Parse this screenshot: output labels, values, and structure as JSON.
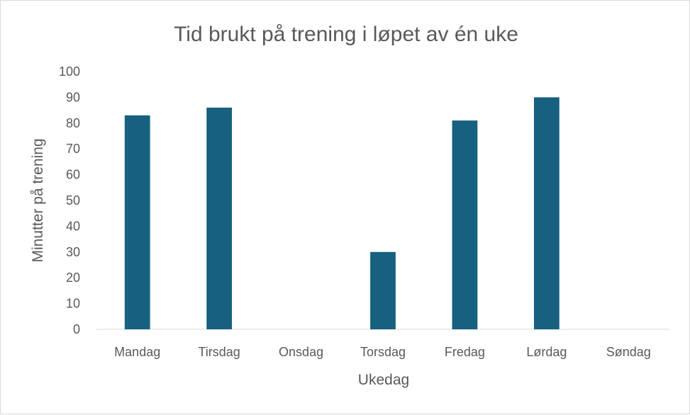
{
  "chart_data": {
    "type": "bar",
    "title": "Tid brukt på trening i løpet av én uke",
    "xlabel": "Ukedag",
    "ylabel": "Minutter på trening",
    "categories": [
      "Mandag",
      "Tirsdag",
      "Onsdag",
      "Torsdag",
      "Fredag",
      "Lørdag",
      "Søndag"
    ],
    "values": [
      83,
      86,
      0,
      30,
      81,
      90,
      0
    ],
    "ylim": [
      0,
      100
    ],
    "yticks": [
      "0",
      "10",
      "20",
      "30",
      "40",
      "50",
      "60",
      "70",
      "80",
      "90",
      "100"
    ],
    "grid": false,
    "legend": "none",
    "bar_color": "#17607f",
    "axis_color": "#d9d9d9",
    "text_color": "#595959"
  }
}
